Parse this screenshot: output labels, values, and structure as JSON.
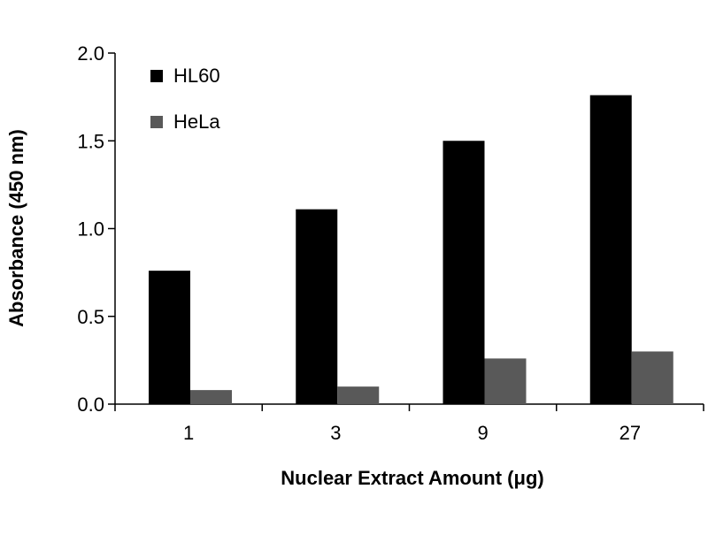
{
  "chart_data": {
    "type": "bar",
    "xlabel": "Nuclear Extract Amount (μg)",
    "ylabel": "Absorbance (450 nm)",
    "categories": [
      "1",
      "3",
      "9",
      "27"
    ],
    "series": [
      {
        "name": "HL60",
        "values": [
          0.76,
          1.11,
          1.5,
          1.76
        ]
      },
      {
        "name": "HeLa",
        "values": [
          0.08,
          0.1,
          0.26,
          0.3
        ]
      }
    ],
    "ylim": [
      0,
      2.0
    ],
    "yticks": [
      "0.0",
      "0.5",
      "1.0",
      "1.5",
      "2.0"
    ],
    "grid": false,
    "legend": "top-left",
    "colors": {
      "HL60": "#000000",
      "HeLa": "#595959"
    }
  }
}
